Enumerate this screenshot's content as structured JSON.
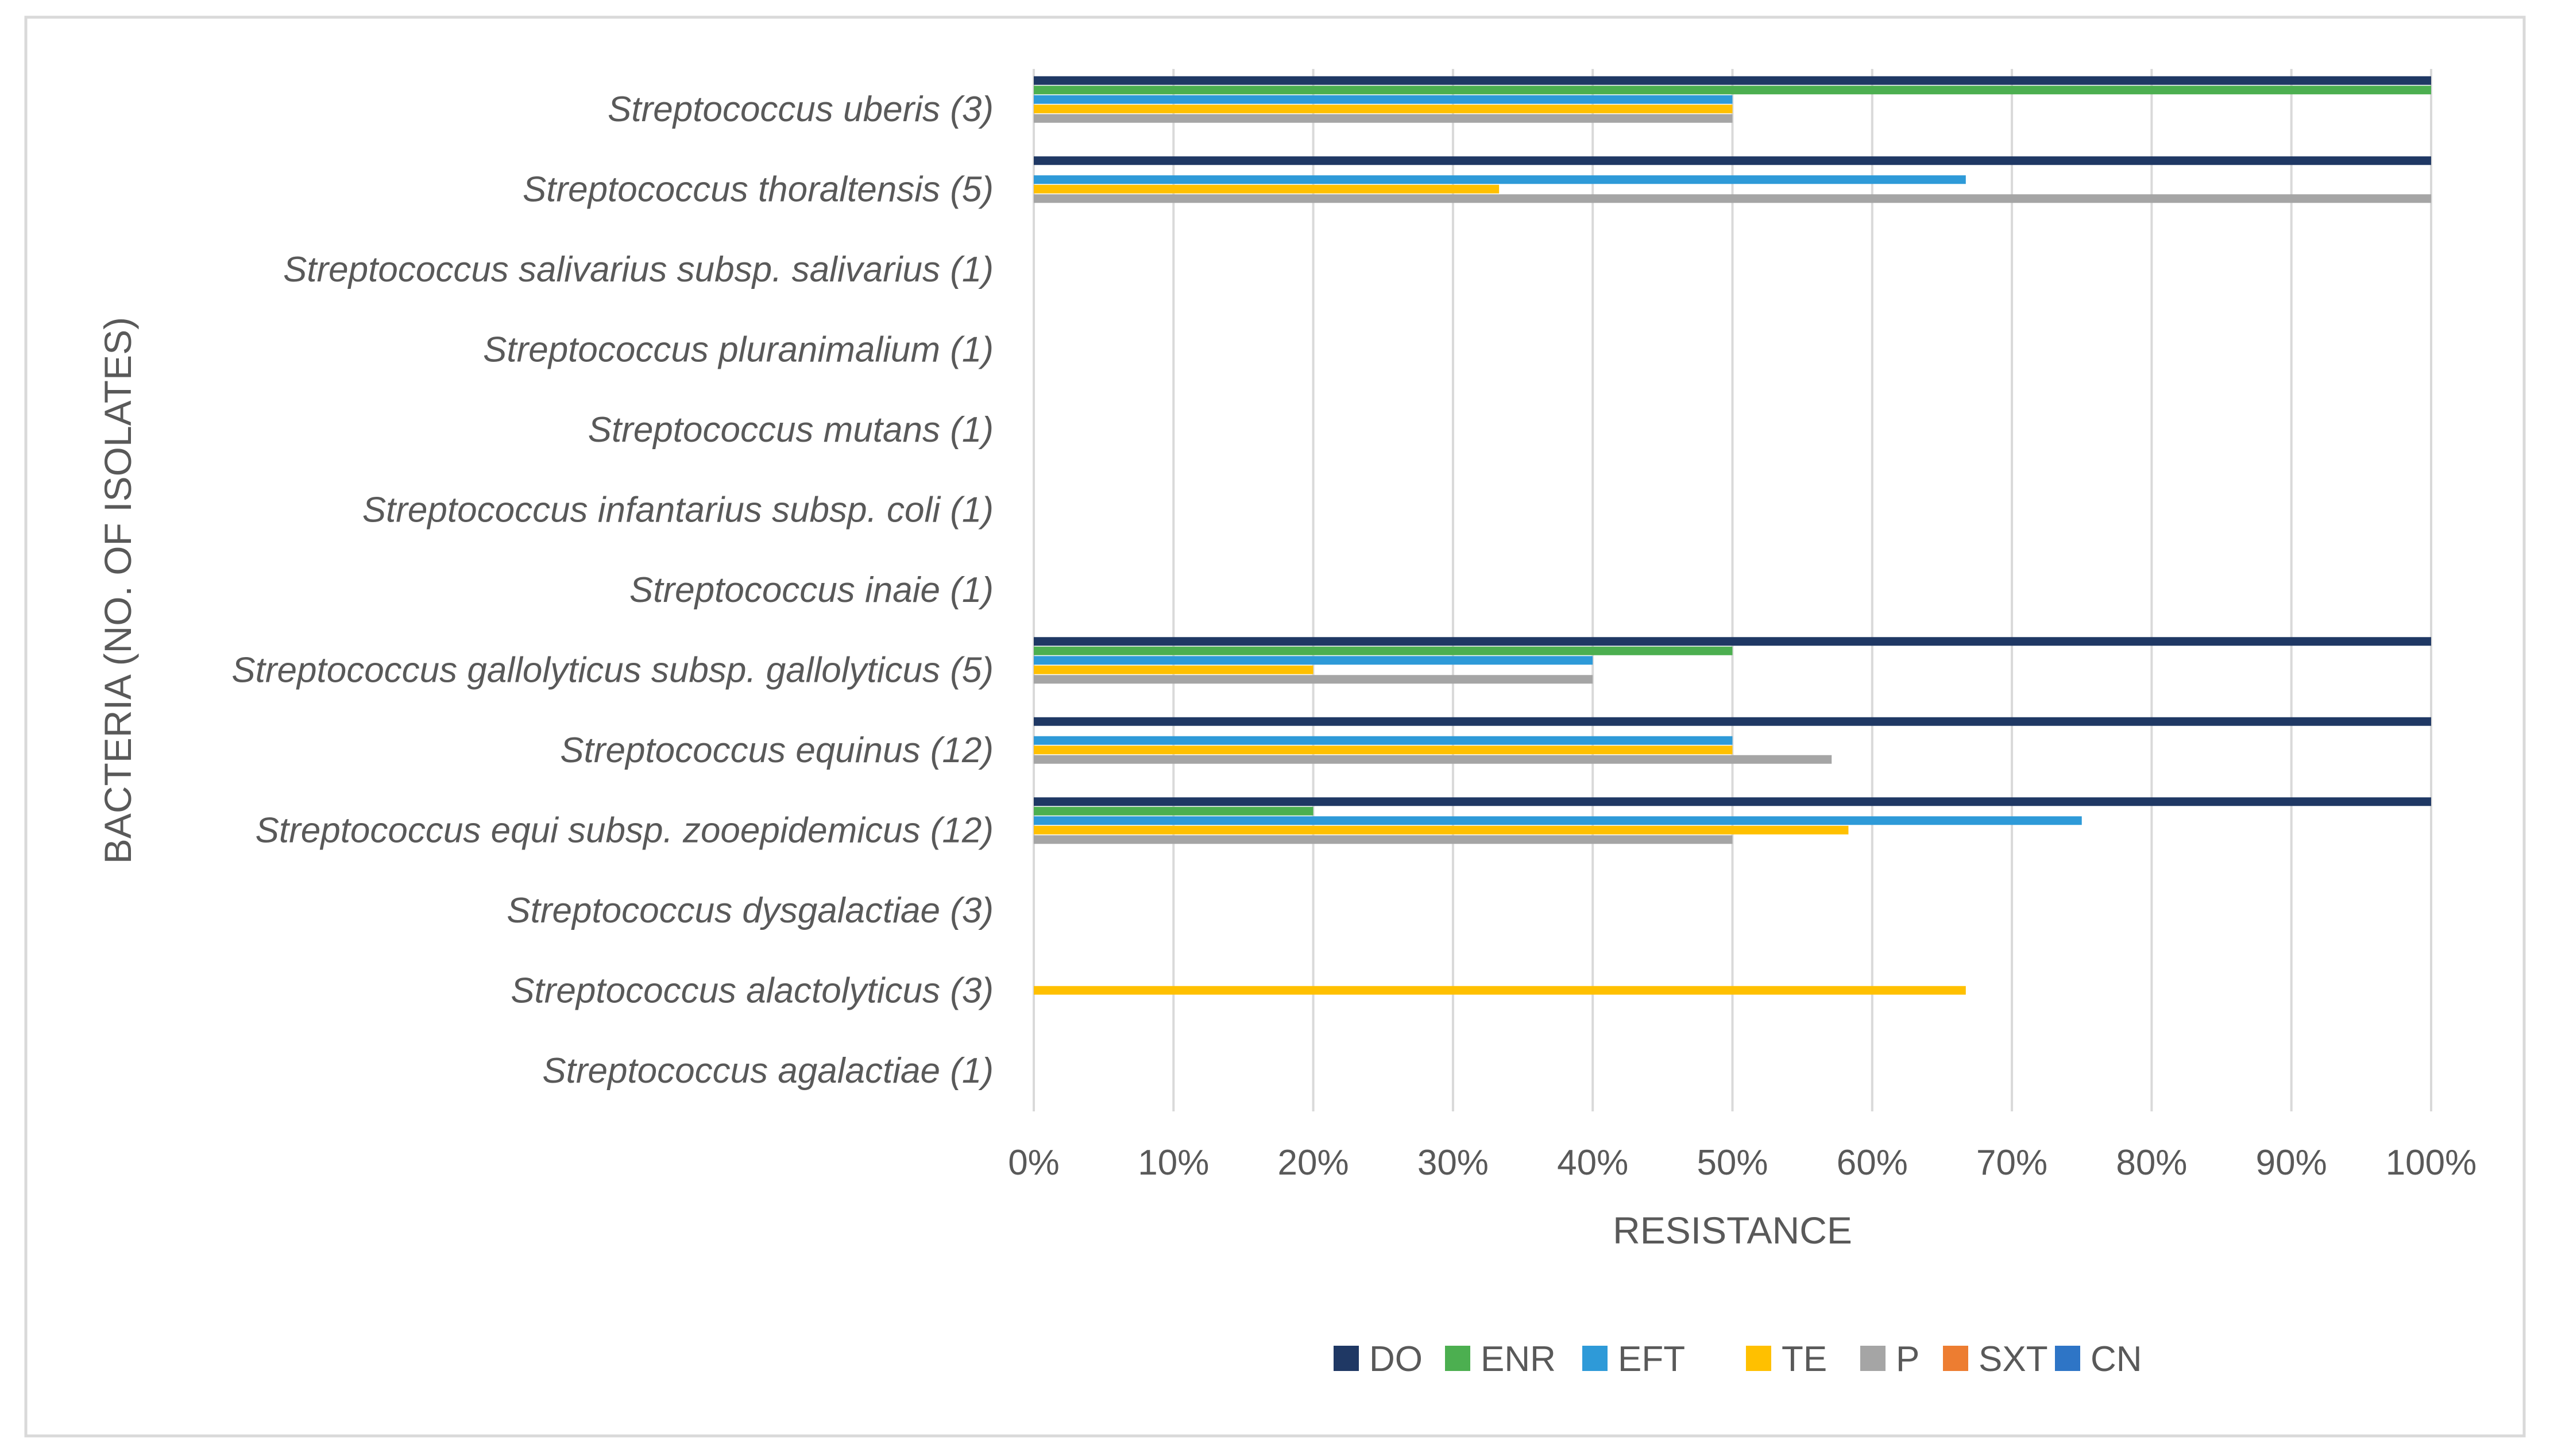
{
  "chart_data": {
    "type": "bar",
    "orientation": "horizontal",
    "title": "",
    "xlabel": "RESISTANCE",
    "ylabel": "BACTERIA (NO. OF ISOLATES)",
    "xlim": [
      0,
      100
    ],
    "x_ticks": [
      "0%",
      "10%",
      "20%",
      "30%",
      "40%",
      "50%",
      "60%",
      "70%",
      "80%",
      "90%",
      "100%"
    ],
    "grid": true,
    "legend_position": "bottom",
    "categories": [
      "Streptococcus uberis (3)",
      "Streptococcus thoraltensis (5)",
      "Streptococcus salivarius subsp. salivarius (1)",
      "Streptococcus pluranimalium (1)",
      "Streptococcus mutans (1)",
      "Streptococcus infantarius subsp. coli (1)",
      "Streptococcus inaie (1)",
      "Streptococcus gallolyticus subsp. gallolyticus (5)",
      "Streptococcus equinus (12)",
      "Streptococcus equi subsp. zooepidemicus (12)",
      "Streptococcus dysgalactiae (3)",
      "Streptococcus alactolyticus (3)",
      "Streptococcus agalactiae (1)"
    ],
    "series": [
      {
        "name": "DO",
        "color": "#1F3864",
        "values": [
          100,
          100,
          0,
          0,
          0,
          0,
          0,
          100,
          100,
          100,
          0,
          0,
          0
        ]
      },
      {
        "name": "ENR",
        "color": "#4CAF50",
        "values": [
          100,
          0,
          0,
          0,
          0,
          0,
          0,
          50,
          0,
          20,
          0,
          0,
          0
        ]
      },
      {
        "name": "EFT",
        "color": "#2E9AD8",
        "values": [
          50,
          66.7,
          0,
          0,
          0,
          0,
          0,
          40,
          50,
          75,
          0,
          0,
          0
        ]
      },
      {
        "name": "TE",
        "color": "#FFC000",
        "values": [
          50,
          33.3,
          0,
          0,
          0,
          0,
          0,
          20,
          50,
          58.3,
          0,
          66.7,
          0
        ]
      },
      {
        "name": "P",
        "color": "#A5A5A5",
        "values": [
          50,
          100,
          0,
          0,
          0,
          0,
          0,
          40,
          57.1,
          50,
          0,
          0,
          0
        ]
      },
      {
        "name": "SXT",
        "color": "#ED7D31",
        "values": [
          0,
          0,
          0,
          0,
          0,
          0,
          0,
          0,
          0,
          0,
          0,
          0,
          0
        ]
      },
      {
        "name": "CN",
        "color": "#2E75C6",
        "values": [
          0,
          0,
          0,
          0,
          0,
          0,
          0,
          0,
          0,
          0,
          0,
          0,
          0
        ]
      }
    ]
  }
}
